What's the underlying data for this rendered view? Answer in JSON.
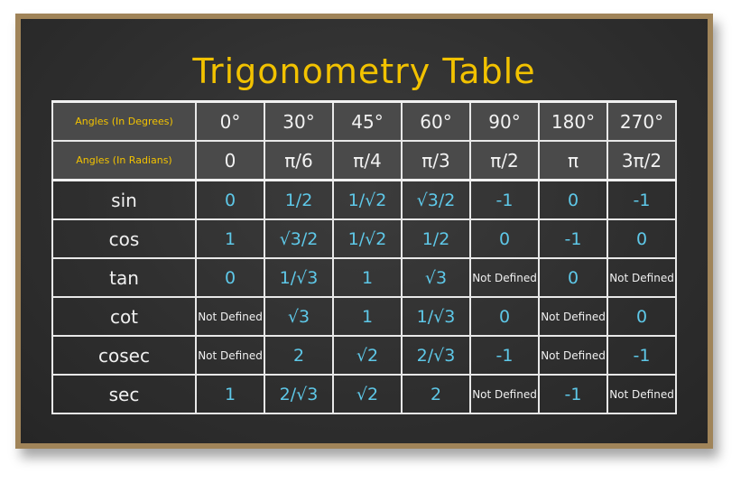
{
  "title": "Trigonometry Table",
  "degrees": {
    "label": "Angles (In Degrees)",
    "values": [
      "0°",
      "30°",
      "45°",
      "60°",
      "90°",
      "180°",
      "270°"
    ]
  },
  "radians": {
    "label": "Angles (In Radians)",
    "values": [
      "0",
      "π/6",
      "π/4",
      "π/3",
      "π/2",
      "π",
      "3π/2"
    ]
  },
  "rows": [
    {
      "fn": "sin",
      "values": [
        "0",
        "1/2",
        "1/√2",
        "√3/2",
        "-1",
        "0",
        "-1"
      ]
    },
    {
      "fn": "cos",
      "values": [
        "1",
        "√3/2",
        "1/√2",
        "1/2",
        "0",
        "-1",
        "0"
      ]
    },
    {
      "fn": "tan",
      "values": [
        "0",
        "1/√3",
        "1",
        "√3",
        "Not Defined",
        "0",
        "Not Defined"
      ]
    },
    {
      "fn": "cot",
      "values": [
        "Not Defined",
        "√3",
        "1",
        "1/√3",
        "0",
        "Not Defined",
        "0"
      ]
    },
    {
      "fn": "cosec",
      "values": [
        "Not Defined",
        "2",
        "√2",
        "2/√3",
        "-1",
        "Not Defined",
        "-1"
      ]
    },
    {
      "fn": "sec",
      "values": [
        "1",
        "2/√3",
        "√2",
        "2",
        "Not Defined",
        "-1",
        "Not Defined"
      ]
    }
  ],
  "colors": {
    "title": "#f2c200",
    "header_label": "#f2c200",
    "value": "#5ec8e8",
    "chalk": "#f0f0f0",
    "board": "#2f2f2f",
    "frame": "#a08459"
  }
}
